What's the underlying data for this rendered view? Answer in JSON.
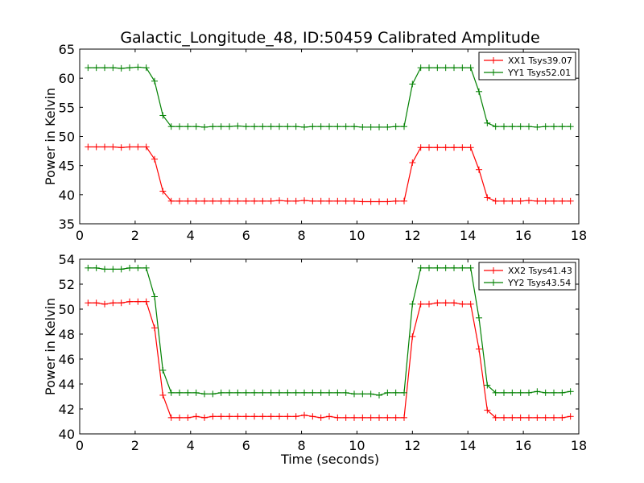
{
  "figure": {
    "title": "Galactic_Longitude_48, ID:50459 Calibrated Amplitude",
    "xlabel": "Time (seconds)"
  },
  "chart_data": [
    {
      "type": "line",
      "ylabel": "Power in Kelvin",
      "xlim": [
        0,
        18
      ],
      "ylim": [
        35,
        65
      ],
      "xticks": [
        0,
        2,
        4,
        6,
        8,
        10,
        12,
        14,
        16,
        18
      ],
      "yticks": [
        35,
        40,
        45,
        50,
        55,
        60,
        65
      ],
      "legend_position": "top-right",
      "x": [
        0.3,
        0.6,
        0.9,
        1.2,
        1.5,
        1.8,
        2.1,
        2.4,
        2.7,
        3.0,
        3.3,
        3.6,
        3.9,
        4.2,
        4.5,
        4.8,
        5.1,
        5.4,
        5.7,
        6.0,
        6.3,
        6.6,
        6.9,
        7.2,
        7.5,
        7.8,
        8.1,
        8.4,
        8.7,
        9.0,
        9.3,
        9.6,
        9.9,
        10.2,
        10.5,
        10.8,
        11.1,
        11.4,
        11.7,
        12.0,
        12.3,
        12.6,
        12.9,
        13.2,
        13.5,
        13.8,
        14.1,
        14.4,
        14.7,
        15.0,
        15.3,
        15.6,
        15.9,
        16.2,
        16.5,
        16.8,
        17.1,
        17.4,
        17.7
      ],
      "series": [
        {
          "name": "XX1 Tsys39.07",
          "color": "#ff0000",
          "values": [
            48.2,
            48.2,
            48.2,
            48.2,
            48.1,
            48.2,
            48.2,
            48.2,
            46.1,
            40.6,
            38.9,
            38.9,
            38.9,
            38.9,
            38.9,
            38.9,
            38.9,
            38.9,
            38.9,
            38.9,
            38.9,
            38.9,
            38.9,
            39.0,
            38.9,
            38.9,
            39.0,
            38.9,
            38.9,
            38.9,
            38.9,
            38.9,
            38.9,
            38.8,
            38.8,
            38.8,
            38.8,
            38.9,
            38.9,
            45.5,
            48.1,
            48.1,
            48.1,
            48.1,
            48.1,
            48.1,
            48.1,
            44.3,
            39.5,
            38.9,
            38.9,
            38.9,
            38.9,
            39.0,
            38.9,
            38.9,
            38.9,
            38.9,
            38.9
          ]
        },
        {
          "name": "YY1 Tsys52.01",
          "color": "#008000",
          "values": [
            61.8,
            61.8,
            61.8,
            61.8,
            61.7,
            61.8,
            61.9,
            61.8,
            59.5,
            53.6,
            51.7,
            51.7,
            51.7,
            51.7,
            51.6,
            51.7,
            51.7,
            51.7,
            51.8,
            51.7,
            51.7,
            51.7,
            51.7,
            51.7,
            51.7,
            51.7,
            51.6,
            51.7,
            51.7,
            51.7,
            51.7,
            51.7,
            51.7,
            51.6,
            51.6,
            51.6,
            51.6,
            51.7,
            51.7,
            59.0,
            61.8,
            61.8,
            61.8,
            61.8,
            61.8,
            61.8,
            61.8,
            57.7,
            52.3,
            51.7,
            51.7,
            51.7,
            51.7,
            51.7,
            51.6,
            51.7,
            51.7,
            51.7,
            51.7
          ]
        }
      ]
    },
    {
      "type": "line",
      "ylabel": "Power in Kelvin",
      "xlabel": "Time (seconds)",
      "xlim": [
        0,
        18
      ],
      "ylim": [
        40,
        54
      ],
      "xticks": [
        0,
        2,
        4,
        6,
        8,
        10,
        12,
        14,
        16,
        18
      ],
      "yticks": [
        40,
        42,
        44,
        46,
        48,
        50,
        52,
        54
      ],
      "legend_position": "top-right",
      "x": [
        0.3,
        0.6,
        0.9,
        1.2,
        1.5,
        1.8,
        2.1,
        2.4,
        2.7,
        3.0,
        3.3,
        3.6,
        3.9,
        4.2,
        4.5,
        4.8,
        5.1,
        5.4,
        5.7,
        6.0,
        6.3,
        6.6,
        6.9,
        7.2,
        7.5,
        7.8,
        8.1,
        8.4,
        8.7,
        9.0,
        9.3,
        9.6,
        9.9,
        10.2,
        10.5,
        10.8,
        11.1,
        11.4,
        11.7,
        12.0,
        12.3,
        12.6,
        12.9,
        13.2,
        13.5,
        13.8,
        14.1,
        14.4,
        14.7,
        15.0,
        15.3,
        15.6,
        15.9,
        16.2,
        16.5,
        16.8,
        17.1,
        17.4,
        17.7
      ],
      "series": [
        {
          "name": "XX2 Tsys41.43",
          "color": "#ff0000",
          "values": [
            50.5,
            50.5,
            50.4,
            50.5,
            50.5,
            50.6,
            50.6,
            50.6,
            48.5,
            43.1,
            41.3,
            41.3,
            41.3,
            41.4,
            41.3,
            41.4,
            41.4,
            41.4,
            41.4,
            41.4,
            41.4,
            41.4,
            41.4,
            41.4,
            41.4,
            41.4,
            41.5,
            41.4,
            41.3,
            41.4,
            41.3,
            41.3,
            41.3,
            41.3,
            41.3,
            41.3,
            41.3,
            41.3,
            41.3,
            47.8,
            50.4,
            50.4,
            50.5,
            50.5,
            50.5,
            50.4,
            50.4,
            46.8,
            41.9,
            41.3,
            41.3,
            41.3,
            41.3,
            41.3,
            41.3,
            41.3,
            41.3,
            41.3,
            41.4
          ]
        },
        {
          "name": "YY2 Tsys43.54",
          "color": "#008000",
          "values": [
            53.3,
            53.3,
            53.2,
            53.2,
            53.2,
            53.3,
            53.3,
            53.3,
            51.0,
            45.1,
            43.3,
            43.3,
            43.3,
            43.3,
            43.2,
            43.2,
            43.3,
            43.3,
            43.3,
            43.3,
            43.3,
            43.3,
            43.3,
            43.3,
            43.3,
            43.3,
            43.3,
            43.3,
            43.3,
            43.3,
            43.3,
            43.3,
            43.2,
            43.2,
            43.2,
            43.1,
            43.3,
            43.3,
            43.3,
            50.4,
            53.3,
            53.3,
            53.3,
            53.3,
            53.3,
            53.3,
            53.3,
            49.3,
            43.9,
            43.3,
            43.3,
            43.3,
            43.3,
            43.3,
            43.4,
            43.3,
            43.3,
            43.3,
            43.4
          ]
        }
      ]
    }
  ]
}
